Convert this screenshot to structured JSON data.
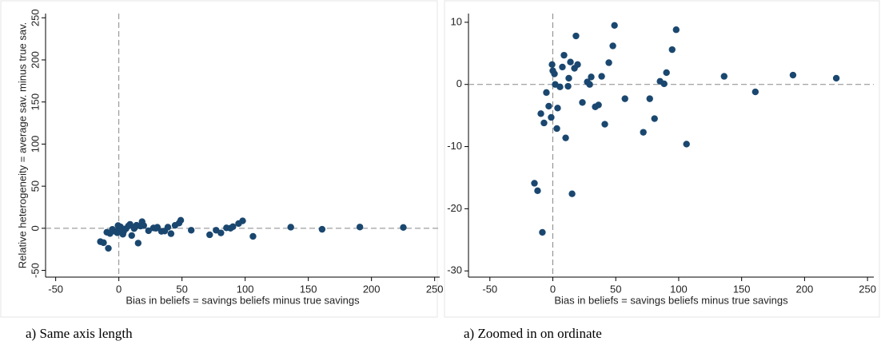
{
  "chart_data": [
    {
      "type": "scatter",
      "x_label": "Bias in beliefs = savings beliefs minus true savings",
      "y_label": "Relative heterogeneity = average sav. minus true sav.",
      "caption": "a) Same axis length",
      "color": "#1a476f",
      "x": [
        -8.3,
        -14.6,
        -12.1,
        -9.5,
        -7.0,
        -5.1,
        -3.2,
        -1.3,
        -0.6,
        0,
        1.3,
        1.9,
        3.2,
        3.8,
        5.7,
        7.6,
        8.9,
        10.2,
        12.1,
        12.7,
        14.0,
        15.3,
        17.2,
        18.4,
        19.7,
        23.5,
        27.4,
        29.3,
        30.5,
        33.7,
        36.3,
        38.8,
        41.3,
        44.5,
        47.7,
        49.0,
        57.3,
        71.9,
        77.0,
        80.8,
        85.2,
        88.4,
        90.3,
        94.8,
        98.0,
        106.2,
        136.1,
        160.9,
        190.8,
        225.2
      ],
      "values": [
        -23.8,
        -15.9,
        -17.1,
        -4.7,
        -6.2,
        -1.3,
        -3.5,
        -5.3,
        3.2,
        2.2,
        1.7,
        0,
        -7.1,
        -3.8,
        -0.4,
        2.8,
        4.7,
        -8.6,
        -0.3,
        1.0,
        3.6,
        -17.6,
        2.6,
        7.8,
        3.2,
        -2.9,
        0.4,
        0,
        1.2,
        -3.6,
        -3.3,
        1.3,
        -6.4,
        3.5,
        6.2,
        9.5,
        -2.3,
        -7.7,
        -2.3,
        -5.5,
        0.5,
        0.1,
        1.9,
        5.6,
        8.8,
        -9.6,
        1.3,
        -1.2,
        1.5,
        1.0
      ],
      "xlim": [
        -58,
        254
      ],
      "ylim": [
        -58,
        255
      ],
      "xticks": [
        -50,
        0,
        50,
        100,
        150,
        200,
        250
      ],
      "yticks": [
        -50,
        0,
        50,
        100,
        150,
        200,
        250
      ],
      "ref_lines": {
        "x": 0,
        "y": 0
      }
    },
    {
      "type": "scatter",
      "x_label": "Bias in beliefs = savings beliefs minus true savings",
      "caption": "a) Zoomed in on ordinate",
      "color": "#1a476f",
      "x": [
        -8.3,
        -14.6,
        -12.1,
        -9.5,
        -7.0,
        -5.1,
        -3.2,
        -1.3,
        -0.6,
        0,
        1.3,
        1.9,
        3.2,
        3.8,
        5.7,
        7.6,
        8.9,
        10.2,
        12.1,
        12.7,
        14.0,
        15.3,
        17.2,
        18.4,
        19.7,
        23.5,
        27.4,
        29.3,
        30.5,
        33.7,
        36.3,
        38.8,
        41.3,
        44.5,
        47.7,
        49.0,
        57.3,
        71.9,
        77.0,
        80.8,
        85.2,
        88.4,
        90.3,
        94.8,
        98.0,
        106.2,
        136.1,
        160.9,
        190.8,
        225.2
      ],
      "values": [
        -23.8,
        -15.9,
        -17.1,
        -4.7,
        -6.2,
        -1.3,
        -3.5,
        -5.3,
        3.2,
        2.2,
        1.7,
        0,
        -7.1,
        -3.8,
        -0.4,
        2.8,
        4.7,
        -8.6,
        -0.3,
        1.0,
        3.6,
        -17.6,
        2.6,
        7.8,
        3.2,
        -2.9,
        0.4,
        0,
        1.2,
        -3.6,
        -3.3,
        1.3,
        -6.4,
        3.5,
        6.2,
        9.5,
        -2.3,
        -7.7,
        -2.3,
        -5.5,
        0.5,
        0.1,
        1.9,
        5.6,
        8.8,
        -9.6,
        1.3,
        -1.2,
        1.5,
        1.0
      ],
      "xlim": [
        -67,
        255
      ],
      "ylim": [
        -31,
        11.4
      ],
      "xticks": [
        -50,
        0,
        50,
        100,
        150,
        200,
        250
      ],
      "yticks": [
        -30,
        -20,
        -10,
        0,
        10
      ],
      "ref_lines": {
        "x": 0,
        "y": 0
      }
    }
  ]
}
